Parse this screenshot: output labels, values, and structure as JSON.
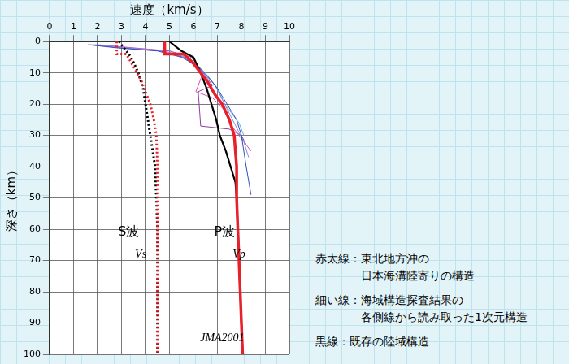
{
  "chart_data": {
    "type": "line",
    "x_label": "速度（km/s）",
    "y_label": "深さ（km）",
    "xlim": [
      0,
      10
    ],
    "xticks": [
      0,
      1,
      2,
      3,
      4,
      5,
      6,
      7,
      8,
      9,
      10
    ],
    "ylim": [
      100,
      0
    ],
    "yticks": [
      0,
      10,
      20,
      30,
      40,
      50,
      60,
      70,
      80,
      90,
      100
    ],
    "grid": true,
    "series": [
      {
        "color": "#e8202a",
        "line_style": "thick",
        "x": [
          4.8,
          4.8,
          5.6,
          6.0,
          6.3,
          6.6,
          6.9,
          7.2,
          7.5,
          7.7,
          7.8,
          7.8,
          7.85,
          7.9,
          7.95,
          8.0,
          8.05
        ],
        "y": [
          0,
          4,
          4,
          7,
          10,
          13,
          17,
          20,
          25,
          30,
          40,
          50,
          60,
          70,
          80,
          90,
          100
        ]
      },
      {
        "color": "#e8202a",
        "line_style": "dotted",
        "x": [
          2.8,
          2.8,
          3.2,
          3.5,
          3.8,
          4.0,
          4.2,
          4.35,
          4.45,
          4.5,
          4.5,
          4.5
        ],
        "y": [
          0,
          4,
          4,
          8,
          12,
          16,
          20,
          25,
          30,
          40,
          50,
          100
        ]
      },
      {
        "color": "#000000",
        "line_style": "solid",
        "x": [
          5.0,
          5.5,
          6.0,
          6.3,
          6.55,
          6.75,
          6.95,
          7.1,
          7.35,
          7.55,
          7.75,
          7.8,
          7.85,
          7.9,
          7.95,
          8.0,
          8.05
        ],
        "y": [
          0,
          3,
          5,
          10,
          15,
          20,
          25,
          30,
          35,
          40,
          45,
          50,
          60,
          70,
          80,
          90,
          100
        ]
      },
      {
        "color": "#000000",
        "line_style": "dotted",
        "x": [
          2.9,
          3.4,
          3.7,
          3.9,
          4.0,
          4.1,
          4.2,
          4.3,
          4.4,
          4.45,
          4.5,
          4.5
        ],
        "y": [
          0,
          5,
          10,
          15,
          20,
          25,
          30,
          35,
          40,
          50,
          60,
          100
        ]
      },
      {
        "color": "#3050c0",
        "line_style": "thin",
        "x": [
          1.6,
          2.8,
          4.5,
          5.5,
          6.2,
          6.7,
          7.0,
          7.4,
          7.8,
          8.0,
          8.2,
          8.4
        ],
        "y": [
          1,
          2,
          3,
          5,
          8,
          12,
          15,
          20,
          25,
          30,
          40,
          49
        ]
      },
      {
        "color": "#8a8ae0",
        "line_style": "thin",
        "x": [
          1.8,
          3.2,
          4.8,
          5.7,
          6.3,
          6.9,
          7.3,
          7.7,
          8.1,
          8.3
        ],
        "y": [
          1,
          2,
          3,
          5,
          9,
          14,
          20,
          26,
          32,
          37
        ]
      },
      {
        "color": "#d050b0",
        "line_style": "thin",
        "x": [
          2.0,
          3.5,
          5.0,
          5.9,
          6.4,
          6.1,
          6.8,
          7.3,
          7.6,
          7.9,
          8.4
        ],
        "y": [
          1,
          2,
          3,
          5,
          10,
          16,
          18,
          22,
          27,
          30,
          35
        ]
      },
      {
        "color": "#9040a0",
        "line_style": "thin",
        "x": [
          1.7,
          3.0,
          4.6,
          5.6,
          6.3,
          6.8,
          6.2,
          6.3,
          7.5,
          8.0,
          8.2
        ],
        "y": [
          1,
          2,
          3,
          5,
          9,
          14,
          16,
          27,
          28,
          30,
          33
        ]
      },
      {
        "color": "#60b0e0",
        "line_style": "thin",
        "x": [
          1.9,
          3.3,
          5.0,
          5.8,
          6.5,
          7.0,
          7.3,
          7.9,
          8.1
        ],
        "y": [
          1,
          2,
          3,
          5,
          10,
          15,
          20,
          26,
          30
        ]
      }
    ],
    "annotations": [
      {
        "text": "S波",
        "x": 3.3,
        "y": 61
      },
      {
        "text": "Vs",
        "x": 3.8,
        "y": 68
      },
      {
        "text": "P波",
        "x": 7.3,
        "y": 61
      },
      {
        "text": "Vp",
        "x": 7.9,
        "y": 68
      },
      {
        "text": "JMA2001",
        "x": 7.2,
        "y": 95
      }
    ]
  },
  "side_notes": [
    [
      "赤太線：東北地方沖の",
      "日本海溝陸寄りの構造"
    ],
    [
      "細い線：海域構造探査結果の",
      "各側線から読み取った1次元構造"
    ],
    [
      "黒線：既存の陸域構造"
    ]
  ]
}
